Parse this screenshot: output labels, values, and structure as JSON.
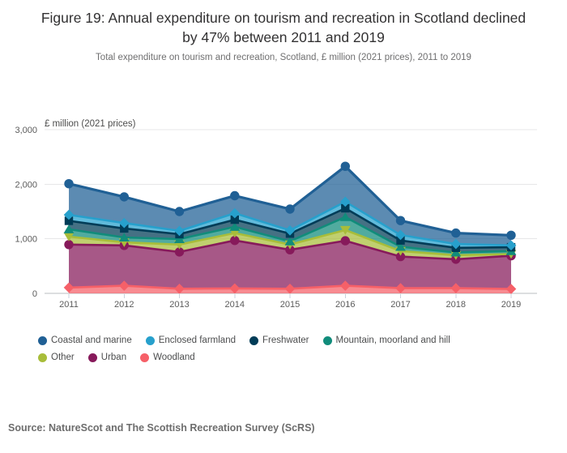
{
  "figure": {
    "title": "Figure 19: Annual expenditure on tourism and recreation in Scotland declined by 47% between 2011 and 2019",
    "subtitle": "Total expenditure on tourism and recreation, Scotland, £ million (2021 prices), 2011 to 2019",
    "source": "Source: NatureScot and The Scottish Recreation Survey (ScRS)"
  },
  "chart_data": {
    "type": "area",
    "stacked": true,
    "title": "Figure 19: Annual expenditure on tourism and recreation in Scotland declined by 47% between 2011 and 2019",
    "xlabel": "",
    "ylabel": "£ million (2021 prices)",
    "unit_label": "£ million (2021 prices)",
    "x": [
      2011,
      2012,
      2013,
      2014,
      2015,
      2016,
      2017,
      2018,
      2019
    ],
    "ylim": [
      0,
      3000
    ],
    "ytick_values": [
      0,
      1000,
      2000,
      3000
    ],
    "ytick_labels": [
      "0",
      "1,000",
      "2,000",
      "3,000"
    ],
    "grid": true,
    "legend_position": "bottom",
    "stack_order": "bottom to top",
    "series": [
      {
        "name": "Woodland",
        "color": "#F66068",
        "marker": "diamond",
        "line_width": 2.6,
        "values": [
          105,
          140,
          85,
          90,
          85,
          140,
          95,
          95,
          80
        ]
      },
      {
        "name": "Urban",
        "color": "#871A5B",
        "marker": "circle",
        "line_width": 2.6,
        "values": [
          790,
          740,
          675,
          880,
          715,
          825,
          580,
          530,
          610
        ]
      },
      {
        "name": "Other",
        "color": "#A8BD3A",
        "marker": "triangle-down",
        "line_width": 2.6,
        "values": [
          145,
          55,
          135,
          135,
          95,
          195,
          100,
          75,
          30
        ]
      },
      {
        "name": "Mountain, moorland and hill",
        "color": "#118C7B",
        "marker": "triangle-up",
        "line_width": 2.6,
        "values": [
          135,
          90,
          100,
          115,
          60,
          240,
          80,
          50,
          55
        ]
      },
      {
        "name": "Freshwater",
        "color": "#003C57",
        "marker": "square",
        "line_width": 2.6,
        "values": [
          155,
          165,
          90,
          130,
          140,
          160,
          115,
          85,
          70
        ]
      },
      {
        "name": "Enclosed farmland",
        "color": "#27A0CC",
        "marker": "diamond",
        "line_width": 2.6,
        "values": [
          110,
          100,
          60,
          120,
          60,
          120,
          100,
          70,
          35
        ]
      },
      {
        "name": "Coastal and marine",
        "color": "#206095",
        "marker": "circle",
        "line_width": 3.2,
        "values": [
          570,
          480,
          355,
          320,
          390,
          650,
          265,
          200,
          185
        ]
      }
    ],
    "totals_by_year": [
      2010,
      1770,
      1500,
      1790,
      1545,
      2330,
      1335,
      1105,
      1065
    ]
  },
  "legend": {
    "rows": [
      [
        "Coastal and marine",
        "Enclosed farmland",
        "Freshwater",
        "Mountain, moorland and hill"
      ],
      [
        "Other",
        "Urban",
        "Woodland"
      ]
    ]
  },
  "style": {
    "grid_color": "#e7e7e8",
    "axis_color": "#b8bcc2",
    "tick_color": "#c9d2dc",
    "tick_label_color": "#5b5b5b",
    "unit_label_color": "#4c4c4c",
    "fill_opacity": 0.73
  }
}
